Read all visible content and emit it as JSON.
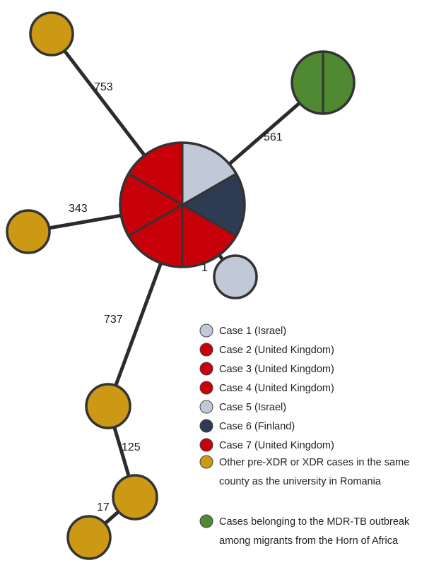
{
  "colors": {
    "israel": "#c1c9d9",
    "united_kingdom": "#c8000a",
    "finland": "#2f3b52",
    "romania": "#cc9914",
    "horn_of_africa": "#4f8a32",
    "edge": "#2b2b2b",
    "outline": "#333333"
  },
  "edges": {
    "e753": "753",
    "e561": "561",
    "e343": "343",
    "e1": "1",
    "e737": "737",
    "e125": "125",
    "e17": "17"
  },
  "legend": [
    {
      "color": "israel",
      "text": "Case 1 (Israel)"
    },
    {
      "color": "united_kingdom",
      "text": "Case 2 (United Kingdom)"
    },
    {
      "color": "united_kingdom",
      "text": "Case 3 (United Kingdom)"
    },
    {
      "color": "united_kingdom",
      "text": "Case 4 (United Kingdom)"
    },
    {
      "color": "israel",
      "text": "Case 5 (Israel)"
    },
    {
      "color": "finland",
      "text": "Case 6 (Finland)"
    },
    {
      "color": "united_kingdom",
      "text": "Case 7 (United Kingdom)"
    },
    {
      "color": "romania",
      "lines": [
        "Other pre-XDR or XDR cases in the same",
        "county as the university in Romania"
      ]
    },
    {
      "color": "horn_of_africa",
      "lines": [
        "Cases belonging to the MDR-TB outbreak",
        "among migrants from the Horn of Africa"
      ]
    }
  ]
}
